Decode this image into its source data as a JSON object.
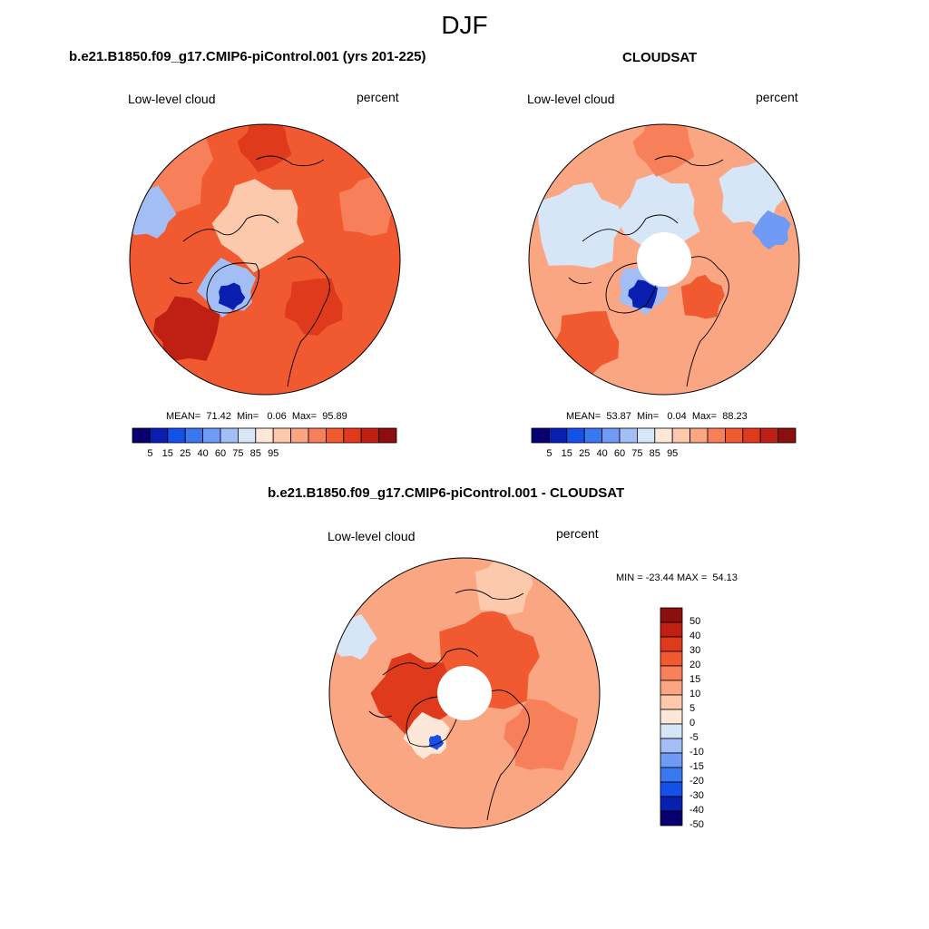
{
  "figure": {
    "title": "DJF"
  },
  "panels": [
    {
      "title": "b.e21.B1850.f09_g17.CMIP6-piControl.001 (yrs 201-225)",
      "left_label": "Low-level cloud",
      "right_label": "percent",
      "stats": {
        "mean_label": "MEAN=",
        "mean": "71.42",
        "min_label": "Min=",
        "min": "0.06",
        "max_label": "Max=",
        "max": "95.89"
      },
      "has_hole": false
    },
    {
      "title": "CLOUDSAT",
      "left_label": "Low-level cloud",
      "right_label": "percent",
      "stats": {
        "mean_label": "MEAN=",
        "mean": "53.87",
        "min_label": "Min=",
        "min": "0.04",
        "max_label": "Max=",
        "max": "88.23"
      },
      "has_hole": true
    },
    {
      "title": "b.e21.B1850.f09_g17.CMIP6-piControl.001 - CLOUDSAT",
      "left_label": "Low-level cloud",
      "right_label": "percent",
      "stats_text": "MIN = -23.44 MAX =  54.13",
      "has_hole": true
    }
  ],
  "colorbar_abs": {
    "colors": [
      "#08006e",
      "#0a1fb0",
      "#1550e8",
      "#3a78f0",
      "#6f9af5",
      "#a2bef5",
      "#d6e6f6",
      "#fde7d8",
      "#fcc9ad",
      "#fba683",
      "#f7805a",
      "#f15930",
      "#e03a1c",
      "#c01f14",
      "#8c0f0f"
    ],
    "ticks": [
      "5",
      "15",
      "25",
      "40",
      "60",
      "75",
      "85",
      "95"
    ]
  },
  "colorbar_diff": {
    "colors": [
      "#8c0f0f",
      "#c01f14",
      "#e03a1c",
      "#f15930",
      "#f7805a",
      "#fba683",
      "#fcc9ad",
      "#fde7d8",
      "#d6e6f6",
      "#a2bef5",
      "#6f9af5",
      "#3a78f0",
      "#1550e8",
      "#0a1fb0",
      "#08006e"
    ],
    "ticks": [
      "50",
      "40",
      "30",
      "20",
      "15",
      "10",
      "5",
      "0",
      "-5",
      "-10",
      "-15",
      "-20",
      "-30",
      "-40",
      "-50"
    ]
  }
}
